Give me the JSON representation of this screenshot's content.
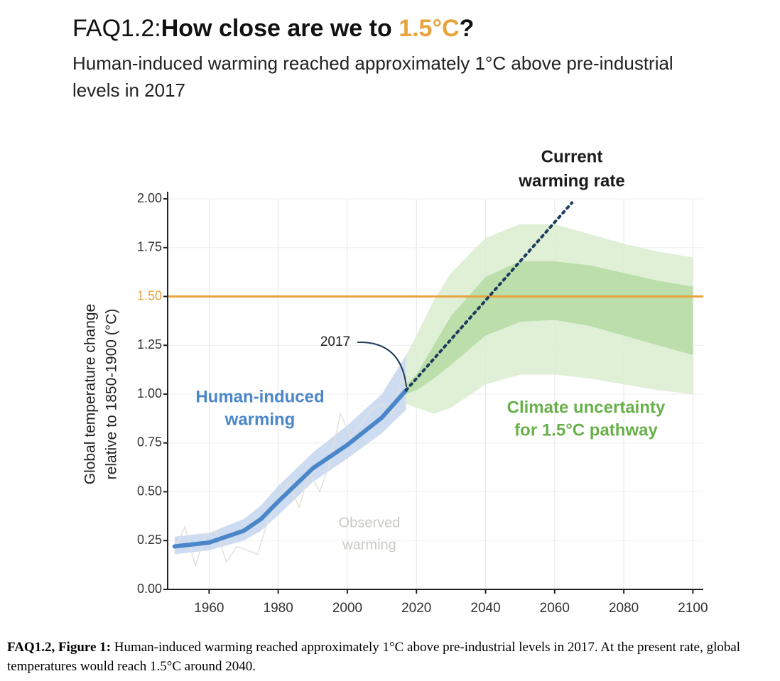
{
  "chart_data": {
    "type": "line",
    "title": [
      "FAQ1.2:",
      "How close are we to",
      "1.5°C",
      "?"
    ],
    "subtitle": "Human-induced warming reached approximately 1°C above pre-industrial levels in 2017",
    "y_label": [
      "Global temperature change",
      "relative to 1850-1900 (°C)"
    ],
    "xlim": [
      1948,
      2103
    ],
    "ylim": [
      0,
      2
    ],
    "xticks": [
      1960,
      1980,
      2000,
      2020,
      2040,
      2060,
      2080,
      2100
    ],
    "yticks": [
      {
        "value": 0,
        "label": "0.00"
      },
      {
        "value": 0.25,
        "label": "0.25"
      },
      {
        "value": 0.5,
        "label": "0.50"
      },
      {
        "value": 0.75,
        "label": "0.75"
      },
      {
        "value": 1,
        "label": "1.00"
      },
      {
        "value": 1.25,
        "label": "1.25"
      },
      {
        "value": 1.5,
        "label": "1.50"
      },
      {
        "value": 1.75,
        "label": "1.75"
      },
      {
        "value": 2,
        "label": "2.00"
      }
    ],
    "grid": true,
    "target": {
      "value": 1.5,
      "color": "#e8a33d"
    },
    "bands": [
      {
        "color": "#d9edcf",
        "x": [
          2017,
          2020,
          2025,
          2030,
          2040,
          2050,
          2060,
          2070,
          2080,
          2090,
          2100
        ],
        "lower": [
          0.95,
          0.93,
          0.9,
          0.93,
          1.05,
          1.1,
          1.1,
          1.08,
          1.05,
          1.02,
          1.0
        ],
        "upper": [
          1.2,
          1.3,
          1.48,
          1.62,
          1.8,
          1.87,
          1.87,
          1.82,
          1.77,
          1.73,
          1.7
        ]
      },
      {
        "color": "#b5dba3",
        "x": [
          2017,
          2020,
          2025,
          2030,
          2040,
          2050,
          2060,
          2070,
          2080,
          2090,
          2100
        ],
        "lower": [
          1.0,
          1.02,
          1.08,
          1.15,
          1.3,
          1.37,
          1.38,
          1.35,
          1.3,
          1.25,
          1.2
        ],
        "upper": [
          1.05,
          1.1,
          1.25,
          1.4,
          1.6,
          1.68,
          1.68,
          1.66,
          1.62,
          1.58,
          1.55
        ]
      },
      {
        "color": "#c5d6ef",
        "x": [
          1950,
          1960,
          1970,
          1975,
          1980,
          1990,
          2000,
          2010,
          2017
        ],
        "lower": [
          0.18,
          0.2,
          0.25,
          0.3,
          0.38,
          0.55,
          0.67,
          0.8,
          0.92
        ],
        "upper": [
          0.27,
          0.29,
          0.36,
          0.43,
          0.53,
          0.7,
          0.84,
          1.0,
          1.2
        ]
      }
    ],
    "observed": {
      "color": "#e2e2dc",
      "x": [
        1950,
        1953,
        1956,
        1959,
        1962,
        1965,
        1968,
        1971,
        1974,
        1977,
        1980,
        1983,
        1986,
        1989,
        1992,
        1995,
        1998,
        2001,
        2004,
        2007,
        2010,
        2013,
        2016,
        2017
      ],
      "values": [
        0.2,
        0.32,
        0.12,
        0.28,
        0.3,
        0.14,
        0.22,
        0.2,
        0.18,
        0.35,
        0.45,
        0.55,
        0.42,
        0.6,
        0.5,
        0.65,
        0.9,
        0.78,
        0.85,
        0.92,
        0.95,
        0.9,
        1.1,
        1.02
      ]
    },
    "human_induced": {
      "color": "#4a86c8",
      "x": [
        1950,
        1960,
        1970,
        1975,
        1980,
        1990,
        2000,
        2010,
        2017
      ],
      "values": [
        0.22,
        0.24,
        0.3,
        0.36,
        0.45,
        0.62,
        0.74,
        0.88,
        1.02
      ]
    },
    "current_rate": {
      "color": "#1d3b5c",
      "x": [
        2017,
        2065
      ],
      "values": [
        1.02,
        1.98
      ]
    },
    "annotations": {
      "current_rate": [
        "Current",
        "warming rate"
      ],
      "year_2017": "2017",
      "human_induced": [
        "Human-induced",
        "warming"
      ],
      "uncertainty": [
        "Climate uncertainty",
        "for 1.5°C pathway"
      ],
      "observed": [
        "Observed",
        "warming"
      ]
    },
    "caption_label": "FAQ1.2, Figure 1:",
    "caption": "Human-induced warming reached approximately 1°C above pre-industrial levels in 2017. At the present rate, global temperatures would reach 1.5°C around 2040."
  }
}
